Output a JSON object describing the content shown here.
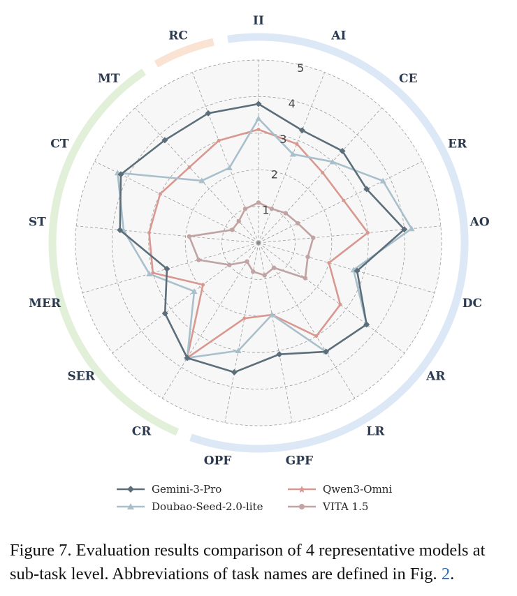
{
  "chart_data": {
    "type": "radar",
    "axes": [
      "II",
      "AI",
      "CE",
      "ER",
      "AO",
      "DC",
      "AR",
      "LR",
      "GPF",
      "OPF",
      "CR",
      "SER",
      "MER",
      "ST",
      "CT",
      "MT",
      "RC"
    ],
    "rlim": [
      0,
      5
    ],
    "rticks": [
      "1",
      "2",
      "3",
      "4",
      "5"
    ],
    "grid": true,
    "legend_position": "bottom",
    "series": [
      {
        "name": "Gemini-3-Pro",
        "color": "#5c6e7a",
        "marker": "diamond",
        "values": [
          3.8,
          3.3,
          3.4,
          3.3,
          4.0,
          2.8,
          3.7,
          3.5,
          3.1,
          3.6,
          3.7,
          3.2,
          2.6,
          3.8,
          4.2,
          3.8,
          3.8
        ]
      },
      {
        "name": "Doubao-Seed-2.0-lite",
        "color": "#a9c0cc",
        "marker": "triangle",
        "values": [
          3.4,
          2.6,
          3.0,
          3.8,
          4.2,
          2.7,
          3.7,
          3.5,
          2.0,
          3.0,
          3.7,
          2.2,
          3.1,
          3.7,
          4.3,
          2.3,
          2.2
        ]
      },
      {
        "name": "Qwen3-Omni",
        "color": "#d89890",
        "marker": "star",
        "values": [
          3.1,
          2.9,
          2.6,
          2.6,
          3.0,
          2.0,
          2.8,
          3.0,
          2.0,
          2.1,
          3.7,
          1.9,
          3.0,
          3.0,
          3.0,
          2.8,
          3.0
        ]
      },
      {
        "name": "VITA 1.5",
        "color": "#c1a3a3",
        "marker": "circle",
        "values": [
          1.1,
          1.0,
          1.1,
          1.2,
          1.5,
          1.4,
          1.6,
          0.8,
          0.9,
          0.8,
          0.6,
          1.0,
          1.7,
          1.9,
          0.8,
          0.8,
          1.0
        ]
      }
    ],
    "group_colors": [
      "#dce8f6",
      "#e2f0da",
      "#fbe3d4"
    ]
  },
  "caption": {
    "text": "Figure 7. Evaluation results comparison of 4 representative models at sub-task level. Abbreviations of task names are defined in Fig. ",
    "ref": "2",
    "end": "."
  }
}
